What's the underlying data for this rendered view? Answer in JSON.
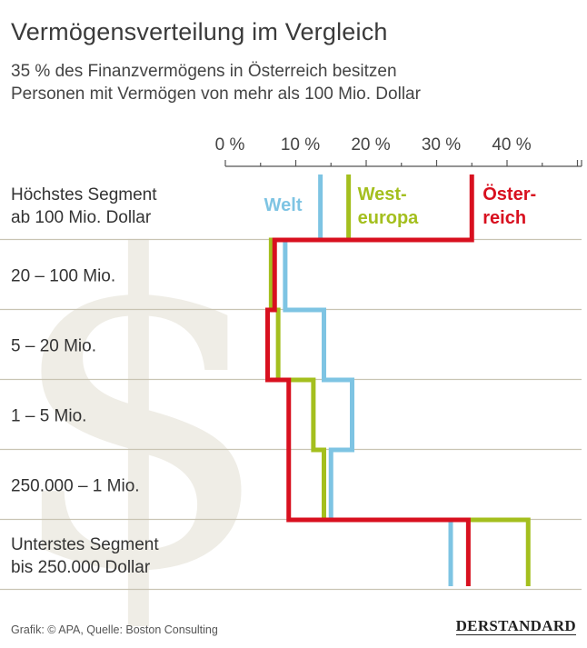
{
  "title": "Vermögensverteilung im Vergleich",
  "subtitle": {
    "line1": "35 % des Finanzvermögens in Österreich besitzen",
    "line2": "Personen mit Vermögen von mehr als 100 Mio. Dollar"
  },
  "footer": {
    "source": "Grafik: © APA, Quelle: Boston Consulting",
    "brand": "DERSTANDARD"
  },
  "colors": {
    "welt": "#7ec4e3",
    "westeuropa": "#a4bf1e",
    "oesterreich": "#d8101f",
    "grid": "#c9c4b3",
    "axis": "#555555",
    "watermark": "#efede6"
  },
  "watermark_icon": "dollar-sign-icon",
  "chart_data": {
    "type": "line",
    "style": "step",
    "xlim": [
      0,
      50
    ],
    "x_ticks": [
      0,
      10,
      20,
      30,
      40
    ],
    "x_tick_labels": [
      "0 %",
      "10 %",
      "20 %",
      "30 %",
      "40 %"
    ],
    "categories": [
      [
        "Höchstes Segment",
        "ab 100 Mio. Dollar"
      ],
      [
        "20 – 100 Mio."
      ],
      [
        "5 – 20 Mio."
      ],
      [
        "1 – 5 Mio."
      ],
      [
        "250.000 – 1 Mio."
      ],
      [
        "Unterstes Segment",
        "bis 250.000 Dollar"
      ]
    ],
    "series": [
      {
        "name": "Welt",
        "label_lines": [
          "Welt"
        ],
        "color_key": "welt",
        "values": [
          13.5,
          8.5,
          14,
          18,
          15,
          32
        ]
      },
      {
        "name": "Westeuropa",
        "label_lines": [
          "West-",
          "europa"
        ],
        "color_key": "westeuropa",
        "values": [
          17.5,
          6.5,
          7.5,
          12.5,
          14,
          43
        ]
      },
      {
        "name": "Österreich",
        "label_lines": [
          "Öster-",
          "reich"
        ],
        "color_key": "oesterreich",
        "values": [
          35,
          7,
          6,
          9,
          9,
          34.5
        ]
      }
    ]
  }
}
